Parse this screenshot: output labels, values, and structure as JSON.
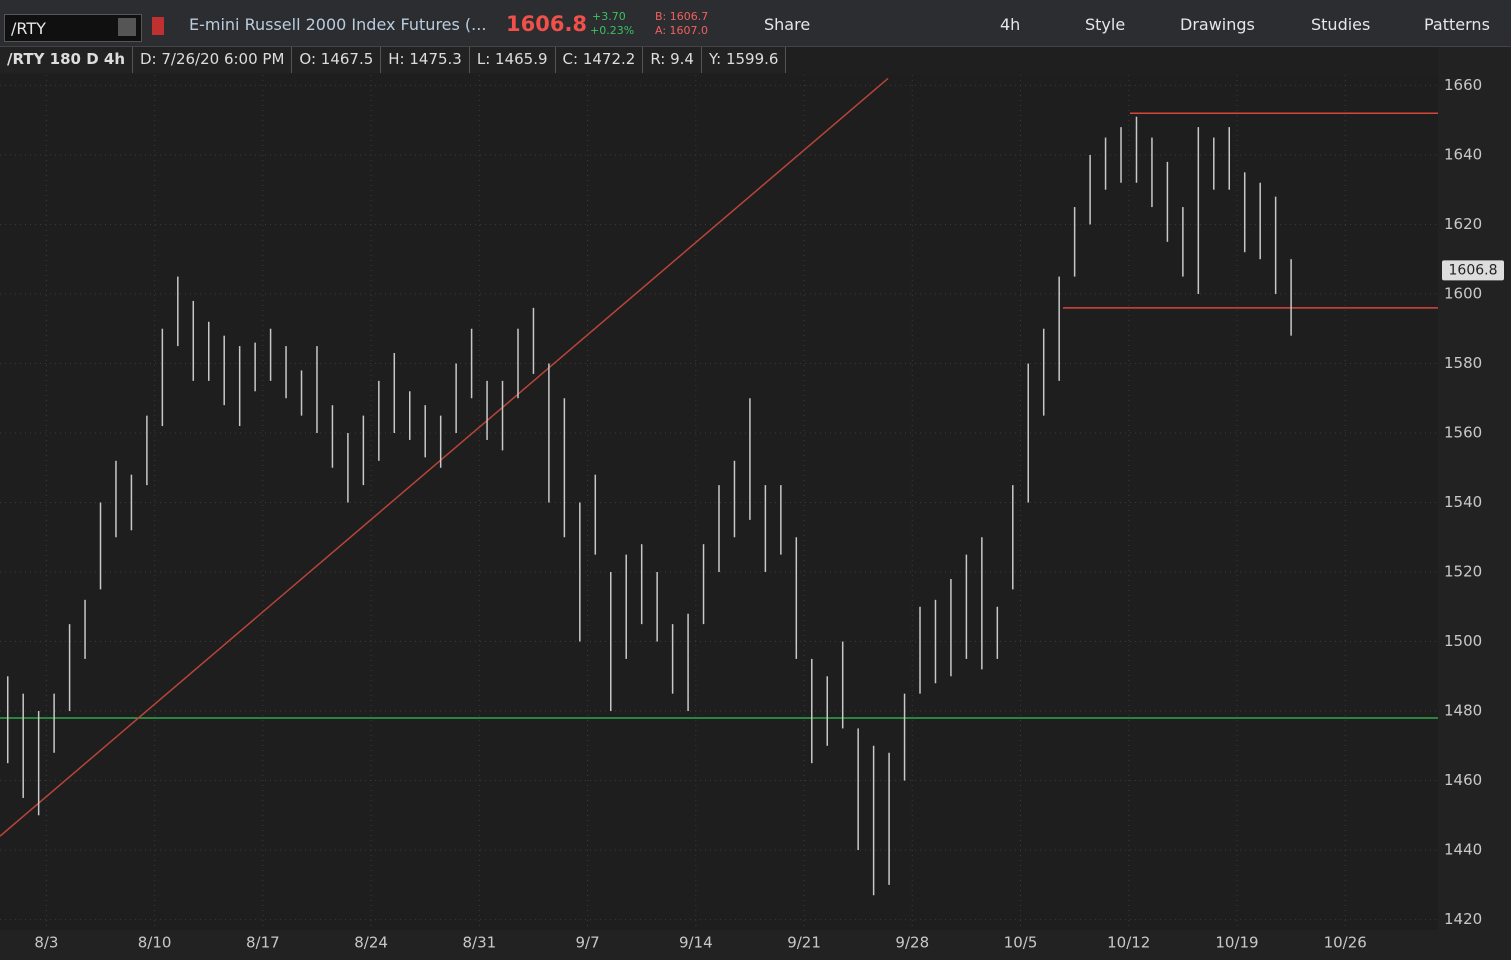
{
  "toolbar": {
    "symbol": "/RTY",
    "description": "E-mini Russell 2000 Index Futures (...",
    "last": "1606.8",
    "change": "+3.70",
    "change_pct": "+0.23%",
    "bid": "B: 1606.7",
    "ask": "A: 1607.0",
    "buttons": [
      "Share",
      "4h",
      "Style",
      "Drawings",
      "Studies",
      "Patterns"
    ]
  },
  "info_bar": [
    "/RTY 180 D 4h",
    "D: 7/26/20 6:00 PM",
    "O: 1467.5",
    "H: 1475.3",
    "L: 1465.9",
    "C: 1472.2",
    "R: 9.4",
    "Y: 1599.6"
  ],
  "chart_data": {
    "type": "ohlc",
    "categories": [
      null,
      null,
      null,
      "8/3",
      null,
      null,
      null,
      null,
      null,
      null,
      "8/10",
      null,
      null,
      null,
      null,
      null,
      null,
      "8/17",
      null,
      null,
      null,
      null,
      null,
      null,
      "8/24",
      null,
      null,
      null,
      null,
      null,
      null,
      "8/31",
      null,
      null,
      null,
      null,
      null,
      null,
      "9/7",
      null,
      null,
      null,
      null,
      null,
      null,
      "9/14",
      null,
      null,
      null,
      null,
      null,
      null,
      "9/21",
      null,
      null,
      null,
      null,
      null,
      null,
      "9/28",
      null,
      null,
      null,
      null,
      null,
      null,
      "10/5",
      null,
      null,
      null,
      null,
      null,
      null,
      "10/12",
      null,
      null,
      null,
      null,
      null,
      null,
      "10/19",
      null,
      null,
      null,
      null,
      null,
      null,
      "10/26",
      null,
      null,
      null,
      null,
      null
    ],
    "high": [
      1490,
      1485,
      1480,
      1485,
      1505,
      1512,
      1540,
      1552,
      1548,
      1565,
      1590,
      1605,
      1598,
      1592,
      1588,
      1585,
      1586,
      1590,
      1585,
      1578,
      1585,
      1568,
      1560,
      1565,
      1575,
      1583,
      1572,
      1568,
      1565,
      1580,
      1590,
      1575,
      1575,
      1590,
      1596,
      1580,
      1570,
      1540,
      1548,
      1520,
      1525,
      1528,
      1520,
      1505,
      1508,
      1528,
      1545,
      1552,
      1570,
      1545,
      1545,
      1530,
      1495,
      1490,
      1500,
      1475,
      1470,
      1468,
      1485,
      1510,
      1512,
      1518,
      1525,
      1530,
      1510,
      1545,
      1580,
      1590,
      1605,
      1625,
      1640,
      1645,
      1648,
      1651,
      1645,
      1638,
      1625,
      1648,
      1645,
      1648,
      1635,
      1632,
      1628,
      1610,
      null,
      null,
      null,
      null,
      null,
      null,
      null,
      null,
      null
    ],
    "low": [
      1465,
      1455,
      1450,
      1468,
      1480,
      1495,
      1515,
      1530,
      1532,
      1545,
      1562,
      1585,
      1575,
      1575,
      1568,
      1562,
      1572,
      1575,
      1570,
      1565,
      1560,
      1550,
      1540,
      1545,
      1552,
      1560,
      1558,
      1553,
      1550,
      1560,
      1570,
      1558,
      1555,
      1570,
      1577,
      1540,
      1530,
      1500,
      1525,
      1480,
      1495,
      1505,
      1500,
      1485,
      1480,
      1505,
      1520,
      1530,
      1535,
      1520,
      1525,
      1495,
      1465,
      1470,
      1475,
      1440,
      1427,
      1430,
      1460,
      1485,
      1488,
      1490,
      1495,
      1492,
      1495,
      1515,
      1540,
      1565,
      1575,
      1605,
      1620,
      1630,
      1632,
      1632,
      1625,
      1615,
      1605,
      1600,
      1630,
      1630,
      1612,
      1610,
      1600,
      1588,
      null,
      null,
      null,
      null,
      null,
      null,
      null,
      null,
      null
    ],
    "color": "#c8c8c8",
    "ylim": [
      1417,
      1663
    ],
    "yticks": [
      1420,
      1440,
      1460,
      1480,
      1500,
      1520,
      1540,
      1560,
      1580,
      1600,
      1620,
      1640,
      1660
    ],
    "grid": true,
    "last_price": 1606.8,
    "hlines": [
      {
        "value": 1478,
        "color": "#2fa84a"
      },
      {
        "value": 1652,
        "color": "#d8453b"
      },
      {
        "value": 1596,
        "color": "#d8453b"
      }
    ],
    "trendline": {
      "values": [
        1444,
        1662
      ],
      "color": "#b8443a"
    }
  }
}
